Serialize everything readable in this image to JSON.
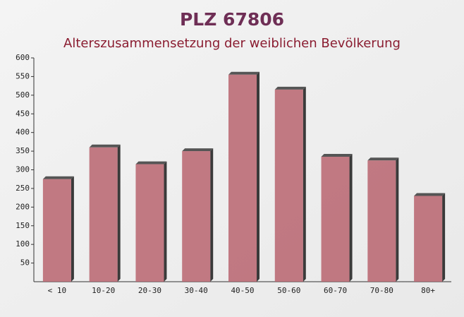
{
  "chart_data": {
    "type": "bar",
    "title": "PLZ 67806",
    "subtitle": "Alterszusammensetzung der weiblichen Bevölkerung",
    "categories": [
      "< 10",
      "10-20",
      "20-30",
      "30-40",
      "40-50",
      "50-60",
      "60-70",
      "70-80",
      "80+"
    ],
    "values": [
      275,
      360,
      315,
      350,
      555,
      515,
      335,
      325,
      230
    ],
    "color": "#b9646f",
    "ylim": [
      0,
      600
    ],
    "yticks": [
      50,
      100,
      150,
      200,
      250,
      300,
      350,
      400,
      450,
      500,
      550,
      600
    ],
    "grid": false
  }
}
